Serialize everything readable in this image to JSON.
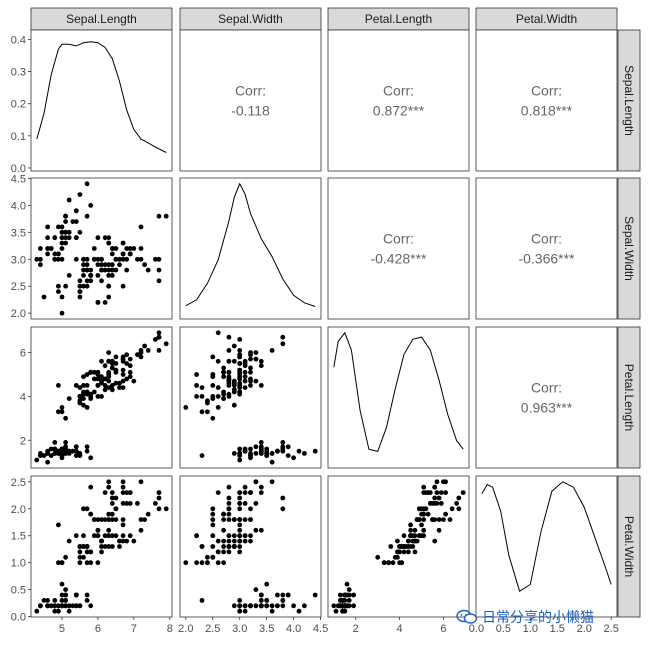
{
  "chart_data": {
    "type": "scatter",
    "title": "",
    "variables": [
      "Sepal.Length",
      "Sepal.Width",
      "Petal.Length",
      "Petal.Width"
    ],
    "ranges": {
      "Sepal.Length": [
        4.3,
        7.9
      ],
      "Sepal.Width": [
        2.0,
        4.4
      ],
      "Petal.Length": [
        1.0,
        6.9
      ],
      "Petal.Width": [
        0.1,
        2.5
      ]
    },
    "x_ticks": {
      "Sepal.Length": [
        5,
        6,
        7,
        8
      ],
      "Sepal.Width": [
        2.0,
        2.5,
        3.0,
        3.5,
        4.0,
        4.5
      ],
      "Petal.Length": [
        2,
        4,
        6
      ],
      "Petal.Width": [
        0.0,
        0.5,
        1.0,
        1.5,
        2.0,
        2.5
      ]
    },
    "x_tick_labels": {
      "Sepal.Length": [
        "5",
        "6",
        "7",
        "8"
      ],
      "Sepal.Width": [
        "2.0",
        "2.5",
        "3.0",
        "3.5",
        "4.0",
        "4.5"
      ],
      "Petal.Length": [
        "2",
        "4",
        "6"
      ],
      "Petal.Width": [
        "0.0",
        "0.5",
        "1.0",
        "1.5",
        "2.0",
        "2.5"
      ]
    },
    "y_ticks": {
      "density_row1": [
        0.0,
        0.1,
        0.2,
        0.3,
        0.4
      ],
      "Sepal.Width": [
        2.0,
        2.5,
        3.0,
        3.5,
        4.0,
        4.5
      ],
      "Petal.Length": [
        2,
        4,
        6
      ],
      "Petal.Width": [
        0.0,
        0.5,
        1.0,
        1.5,
        2.0,
        2.5
      ]
    },
    "y_tick_labels": {
      "density_row1": [
        "0.0",
        "0.1",
        "0.2",
        "0.3",
        "0.4"
      ],
      "Sepal.Width": [
        "2.0",
        "2.5",
        "3.0",
        "3.5",
        "4.0",
        "4.5"
      ],
      "Petal.Length": [
        "2",
        "4",
        "6"
      ],
      "Petal.Width": [
        "0.0",
        "0.5",
        "1.0",
        "1.5",
        "2.0",
        "2.5"
      ]
    },
    "density_row1_ylim": [
      0.0,
      0.42
    ],
    "correlations": [
      {
        "row": "Sepal.Length",
        "col": "Sepal.Width",
        "label": "Corr:",
        "value": "-0.118"
      },
      {
        "row": "Sepal.Length",
        "col": "Petal.Length",
        "label": "Corr:",
        "value": "0.872***"
      },
      {
        "row": "Sepal.Length",
        "col": "Petal.Width",
        "label": "Corr:",
        "value": "0.818***"
      },
      {
        "row": "Sepal.Width",
        "col": "Petal.Length",
        "label": "Corr:",
        "value": "-0.428***"
      },
      {
        "row": "Sepal.Width",
        "col": "Petal.Width",
        "label": "Corr:",
        "value": "-0.366***"
      },
      {
        "row": "Petal.Length",
        "col": "Petal.Width",
        "label": "Corr:",
        "value": "0.963***"
      }
    ],
    "density_curves": {
      "Sepal.Length": {
        "x": [
          4.3,
          4.5,
          4.7,
          4.9,
          5.0,
          5.2,
          5.4,
          5.6,
          5.8,
          6.0,
          6.2,
          6.4,
          6.6,
          6.8,
          7.0,
          7.2,
          7.4,
          7.6,
          7.9
        ],
        "y": [
          0.09,
          0.17,
          0.29,
          0.37,
          0.385,
          0.385,
          0.38,
          0.39,
          0.393,
          0.39,
          0.375,
          0.34,
          0.27,
          0.18,
          0.12,
          0.09,
          0.078,
          0.065,
          0.048
        ]
      },
      "Sepal.Width": {
        "x": [
          2.0,
          2.2,
          2.4,
          2.6,
          2.8,
          2.9,
          3.0,
          3.1,
          3.2,
          3.4,
          3.6,
          3.8,
          4.0,
          4.2,
          4.4
        ],
        "y": [
          0.05,
          0.09,
          0.2,
          0.36,
          0.62,
          0.78,
          0.87,
          0.8,
          0.67,
          0.5,
          0.38,
          0.23,
          0.12,
          0.07,
          0.045
        ]
      },
      "Petal.Length": {
        "x": [
          1.0,
          1.2,
          1.5,
          1.8,
          2.2,
          2.6,
          3.0,
          3.4,
          3.8,
          4.2,
          4.6,
          5.0,
          5.4,
          5.8,
          6.2,
          6.6,
          6.9
        ],
        "y": [
          0.22,
          0.28,
          0.3,
          0.26,
          0.12,
          0.03,
          0.025,
          0.08,
          0.17,
          0.25,
          0.285,
          0.29,
          0.26,
          0.19,
          0.11,
          0.05,
          0.03
        ]
      },
      "Petal.Width": {
        "x": [
          0.1,
          0.2,
          0.3,
          0.45,
          0.6,
          0.8,
          1.0,
          1.2,
          1.4,
          1.6,
          1.8,
          2.0,
          2.2,
          2.4,
          2.5
        ],
        "y": [
          0.88,
          0.95,
          0.93,
          0.75,
          0.42,
          0.15,
          0.2,
          0.6,
          0.9,
          0.97,
          0.93,
          0.78,
          0.55,
          0.32,
          0.2
        ]
      }
    },
    "observations": {
      "Sepal.Length": [
        5.1,
        4.9,
        4.7,
        4.6,
        5.0,
        5.4,
        4.6,
        5.0,
        4.4,
        4.9,
        5.4,
        4.8,
        4.8,
        4.3,
        5.8,
        5.7,
        5.4,
        5.1,
        5.7,
        5.1,
        5.4,
        5.1,
        4.6,
        5.1,
        4.8,
        5.0,
        5.0,
        5.2,
        5.2,
        4.7,
        4.8,
        5.4,
        5.2,
        5.5,
        4.9,
        5.0,
        5.5,
        4.9,
        4.4,
        5.1,
        5.0,
        4.5,
        4.4,
        5.0,
        5.1,
        4.8,
        5.1,
        4.6,
        5.3,
        5.0,
        7.0,
        6.4,
        6.9,
        5.5,
        6.5,
        5.7,
        6.3,
        4.9,
        6.6,
        5.2,
        5.0,
        5.9,
        6.0,
        6.1,
        5.6,
        6.7,
        5.6,
        5.8,
        6.2,
        5.6,
        5.9,
        6.1,
        6.3,
        6.1,
        6.4,
        6.6,
        6.8,
        6.7,
        6.0,
        5.7,
        5.5,
        5.5,
        5.8,
        6.0,
        5.4,
        6.0,
        6.7,
        6.3,
        5.6,
        5.5,
        5.5,
        6.1,
        5.8,
        5.0,
        5.6,
        5.7,
        5.7,
        6.2,
        5.1,
        5.7,
        6.3,
        5.8,
        7.1,
        6.3,
        6.5,
        7.6,
        4.9,
        7.3,
        6.7,
        7.2,
        6.5,
        6.4,
        6.8,
        5.7,
        5.8,
        6.4,
        6.5,
        7.7,
        7.7,
        6.0,
        6.9,
        5.6,
        7.7,
        6.3,
        6.7,
        7.2,
        6.2,
        6.1,
        6.4,
        7.2,
        7.4,
        7.9,
        6.4,
        6.3,
        6.1,
        7.7,
        6.3,
        6.4,
        6.0,
        6.9,
        6.7,
        6.9,
        5.8,
        6.8,
        6.7,
        6.7,
        6.3,
        6.5,
        6.2,
        5.9
      ],
      "Sepal.Width": [
        3.5,
        3.0,
        3.2,
        3.1,
        3.6,
        3.9,
        3.4,
        3.4,
        2.9,
        3.1,
        3.7,
        3.4,
        3.0,
        3.0,
        4.0,
        4.4,
        3.9,
        3.5,
        3.8,
        3.8,
        3.4,
        3.7,
        3.6,
        3.3,
        3.4,
        3.0,
        3.4,
        3.5,
        3.4,
        3.2,
        3.1,
        3.4,
        4.1,
        4.2,
        3.1,
        3.2,
        3.5,
        3.6,
        3.0,
        3.4,
        3.5,
        2.3,
        3.2,
        3.5,
        3.8,
        3.0,
        3.8,
        3.2,
        3.7,
        3.3,
        3.2,
        3.2,
        3.1,
        2.3,
        2.8,
        2.8,
        3.3,
        2.4,
        2.9,
        2.7,
        2.0,
        3.0,
        2.2,
        2.9,
        2.9,
        3.1,
        3.0,
        2.7,
        2.2,
        2.5,
        3.2,
        2.8,
        2.5,
        2.8,
        2.9,
        3.0,
        2.8,
        3.0,
        2.9,
        2.6,
        2.4,
        2.4,
        2.7,
        2.7,
        3.0,
        3.4,
        3.1,
        2.3,
        3.0,
        2.5,
        2.6,
        3.0,
        2.6,
        2.3,
        2.7,
        3.0,
        2.9,
        2.9,
        2.5,
        2.8,
        3.3,
        2.7,
        3.0,
        2.9,
        3.0,
        3.0,
        2.5,
        2.9,
        2.5,
        3.6,
        3.2,
        2.7,
        3.0,
        2.5,
        2.8,
        3.2,
        3.0,
        3.8,
        2.6,
        2.2,
        3.2,
        2.8,
        2.8,
        2.7,
        3.3,
        3.2,
        2.8,
        3.0,
        2.8,
        3.0,
        2.8,
        3.8,
        2.8,
        2.8,
        2.6,
        3.0,
        3.4,
        3.1,
        3.0,
        3.1,
        3.1,
        3.1,
        2.7,
        3.2,
        3.3,
        3.0,
        2.5,
        3.0,
        3.4,
        3.0
      ],
      "Petal.Length": [
        1.4,
        1.4,
        1.3,
        1.5,
        1.4,
        1.7,
        1.4,
        1.5,
        1.4,
        1.5,
        1.5,
        1.6,
        1.4,
        1.1,
        1.2,
        1.5,
        1.3,
        1.4,
        1.7,
        1.5,
        1.7,
        1.5,
        1.0,
        1.7,
        1.9,
        1.6,
        1.6,
        1.5,
        1.4,
        1.6,
        1.6,
        1.5,
        1.5,
        1.4,
        1.5,
        1.2,
        1.3,
        1.4,
        1.3,
        1.5,
        1.3,
        1.3,
        1.3,
        1.6,
        1.9,
        1.4,
        1.6,
        1.4,
        1.5,
        1.4,
        4.7,
        4.5,
        4.9,
        4.0,
        4.6,
        4.5,
        4.7,
        3.3,
        4.6,
        3.9,
        3.5,
        4.2,
        4.0,
        4.7,
        3.6,
        4.4,
        4.5,
        4.1,
        4.5,
        3.9,
        4.8,
        4.0,
        4.9,
        4.7,
        4.3,
        4.4,
        4.8,
        5.0,
        4.5,
        3.5,
        3.8,
        3.7,
        3.9,
        5.1,
        4.5,
        4.5,
        4.7,
        4.4,
        4.1,
        4.0,
        4.4,
        4.6,
        4.0,
        3.3,
        4.2,
        4.2,
        4.2,
        4.3,
        3.0,
        4.1,
        6.0,
        5.1,
        5.9,
        5.6,
        5.8,
        6.6,
        4.5,
        6.3,
        5.8,
        6.1,
        5.1,
        5.3,
        5.5,
        5.0,
        5.1,
        5.3,
        5.5,
        6.7,
        6.9,
        5.0,
        5.7,
        4.9,
        6.7,
        4.9,
        5.7,
        6.0,
        4.8,
        4.9,
        5.6,
        5.8,
        6.1,
        6.4,
        5.6,
        5.1,
        5.6,
        6.1,
        5.6,
        5.5,
        4.8,
        5.4,
        5.6,
        5.1,
        5.1,
        5.9,
        5.7,
        5.2,
        5.0,
        5.2,
        5.4,
        5.1
      ],
      "Petal.Width": [
        0.2,
        0.2,
        0.2,
        0.2,
        0.2,
        0.4,
        0.3,
        0.2,
        0.2,
        0.1,
        0.2,
        0.2,
        0.1,
        0.1,
        0.2,
        0.4,
        0.4,
        0.3,
        0.3,
        0.3,
        0.2,
        0.4,
        0.2,
        0.5,
        0.2,
        0.2,
        0.4,
        0.2,
        0.2,
        0.2,
        0.2,
        0.4,
        0.1,
        0.2,
        0.2,
        0.2,
        0.2,
        0.1,
        0.2,
        0.2,
        0.3,
        0.3,
        0.2,
        0.6,
        0.4,
        0.3,
        0.2,
        0.2,
        0.2,
        0.2,
        1.4,
        1.5,
        1.5,
        1.3,
        1.5,
        1.3,
        1.6,
        1.0,
        1.3,
        1.4,
        1.0,
        1.5,
        1.0,
        1.4,
        1.3,
        1.4,
        1.5,
        1.0,
        1.5,
        1.1,
        1.8,
        1.3,
        1.5,
        1.2,
        1.3,
        1.4,
        1.4,
        1.7,
        1.5,
        1.0,
        1.1,
        1.0,
        1.2,
        1.6,
        1.5,
        1.6,
        1.5,
        1.3,
        1.3,
        1.3,
        1.2,
        1.4,
        1.2,
        1.0,
        1.3,
        1.2,
        1.3,
        1.3,
        1.1,
        1.3,
        2.5,
        1.9,
        2.1,
        1.8,
        2.2,
        2.1,
        1.7,
        1.8,
        1.8,
        2.5,
        2.0,
        1.9,
        2.1,
        2.0,
        2.4,
        2.3,
        1.8,
        2.2,
        2.3,
        1.5,
        2.3,
        2.0,
        2.0,
        1.8,
        2.1,
        1.8,
        1.8,
        1.8,
        2.1,
        1.6,
        1.9,
        2.0,
        2.2,
        1.5,
        1.4,
        2.3,
        2.4,
        1.8,
        1.8,
        2.1,
        2.4,
        2.3,
        1.9,
        2.3,
        2.5,
        2.3,
        1.9,
        2.0,
        2.3,
        1.8
      ]
    }
  },
  "watermark": {
    "text": "日常分享的小懒猫",
    "icon": "wechat-icon"
  }
}
